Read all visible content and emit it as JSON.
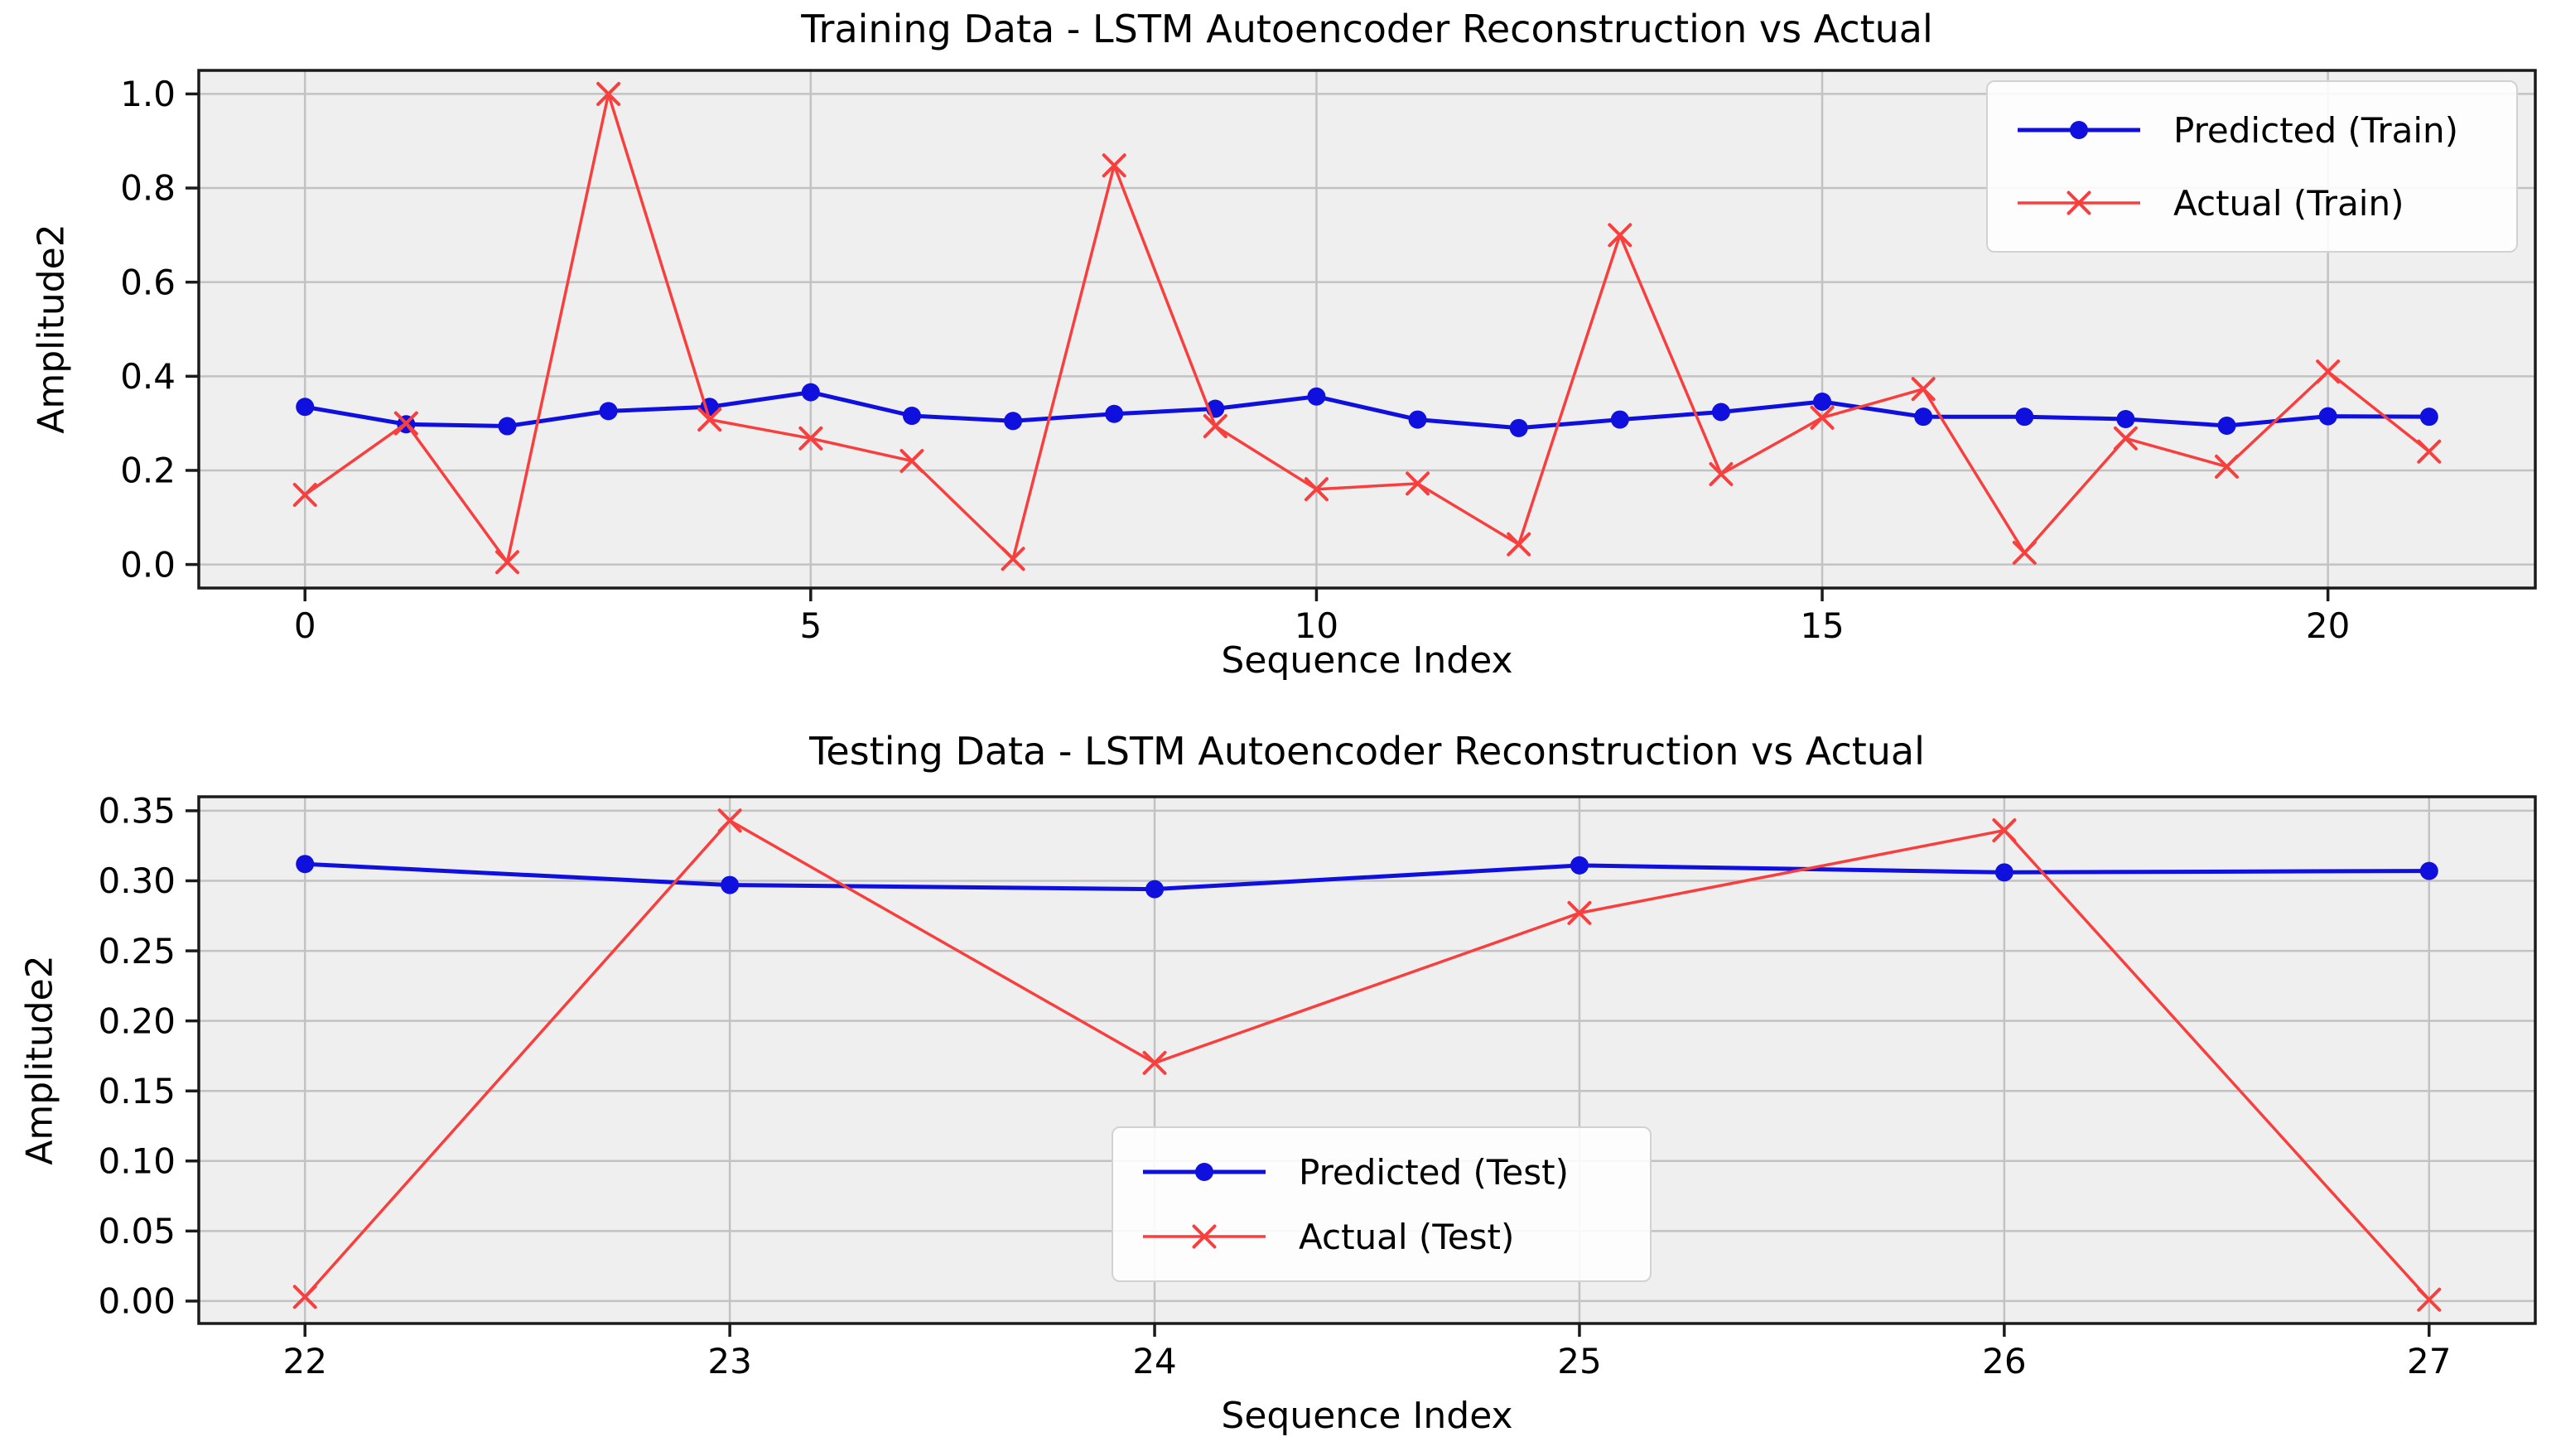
{
  "style": {
    "figure_background": "#ffffff",
    "axes_background": "#efefef",
    "grid_color": "#c2c2c2",
    "spine_color": "#1b1b1b",
    "text_color": "#000000",
    "predicted_color": "#1010de",
    "actual_color": "#f93e3e"
  },
  "chart_data": [
    {
      "type": "line",
      "title": "Training Data - LSTM Autoencoder Reconstruction vs Actual",
      "xlabel": "Sequence Index",
      "ylabel": "Amplitude2",
      "grid": true,
      "xlim": [
        -1.05,
        22.05
      ],
      "ylim": [
        -0.05,
        1.05
      ],
      "xticks": [
        0,
        5,
        10,
        15,
        20
      ],
      "xtick_labels": [
        "0",
        "5",
        "10",
        "15",
        "20"
      ],
      "yticks": [
        0.0,
        0.2,
        0.4,
        0.6,
        0.8,
        1.0
      ],
      "ytick_labels": [
        "0.0",
        "0.2",
        "0.4",
        "0.6",
        "0.8",
        "1.0"
      ],
      "legend": {
        "position": "upper-right",
        "items": [
          {
            "label": "Predicted (Train)",
            "slug": "predicted-train",
            "color": "#1010de",
            "marker": "circle"
          },
          {
            "label": "Actual (Train)",
            "slug": "actual-train",
            "color": "#f93e3e",
            "marker": "x"
          }
        ]
      },
      "x": [
        0,
        1,
        2,
        3,
        4,
        5,
        6,
        7,
        8,
        9,
        10,
        11,
        12,
        13,
        14,
        15,
        16,
        17,
        18,
        19,
        20,
        21
      ],
      "series": [
        {
          "name": "Predicted (Train)",
          "slug": "predicted-train",
          "color": "#1010de",
          "marker": "circle",
          "values": [
            0.335,
            0.298,
            0.294,
            0.326,
            0.335,
            0.366,
            0.316,
            0.305,
            0.32,
            0.331,
            0.357,
            0.308,
            0.29,
            0.308,
            0.324,
            0.346,
            0.314,
            0.314,
            0.309,
            0.295,
            0.315,
            0.314
          ]
        },
        {
          "name": "Actual (Train)",
          "slug": "actual-train",
          "color": "#f93e3e",
          "marker": "x",
          "values": [
            0.148,
            0.3,
            0.005,
            1.0,
            0.308,
            0.268,
            0.22,
            0.012,
            0.848,
            0.294,
            0.16,
            0.172,
            0.043,
            0.7,
            0.192,
            0.312,
            0.373,
            0.025,
            0.268,
            0.208,
            0.41,
            0.24
          ]
        }
      ]
    },
    {
      "type": "line",
      "title": "Testing Data - LSTM Autoencoder Reconstruction vs Actual",
      "xlabel": "Sequence Index",
      "ylabel": "Amplitude2",
      "grid": true,
      "xlim": [
        21.75,
        27.25
      ],
      "ylim": [
        -0.016,
        0.36
      ],
      "xticks": [
        22,
        23,
        24,
        25,
        26,
        27
      ],
      "xtick_labels": [
        "22",
        "23",
        "24",
        "25",
        "26",
        "27"
      ],
      "yticks": [
        0.0,
        0.05,
        0.1,
        0.15,
        0.2,
        0.25,
        0.3,
        0.35
      ],
      "ytick_labels": [
        "0.00",
        "0.05",
        "0.10",
        "0.15",
        "0.20",
        "0.25",
        "0.30",
        "0.35"
      ],
      "legend": {
        "position": "lower-center",
        "items": [
          {
            "label": "Predicted (Test)",
            "slug": "predicted-test",
            "color": "#1010de",
            "marker": "circle"
          },
          {
            "label": "Actual (Test)",
            "slug": "actual-test",
            "color": "#f93e3e",
            "marker": "x"
          }
        ]
      },
      "x": [
        22,
        23,
        24,
        25,
        26,
        27
      ],
      "series": [
        {
          "name": "Predicted (Test)",
          "slug": "predicted-test",
          "color": "#1010de",
          "marker": "circle",
          "values": [
            0.312,
            0.297,
            0.294,
            0.311,
            0.306,
            0.307
          ]
        },
        {
          "name": "Actual (Test)",
          "slug": "actual-test",
          "color": "#f93e3e",
          "marker": "x",
          "values": [
            0.003,
            0.343,
            0.17,
            0.277,
            0.336,
            0.001
          ]
        }
      ]
    }
  ]
}
